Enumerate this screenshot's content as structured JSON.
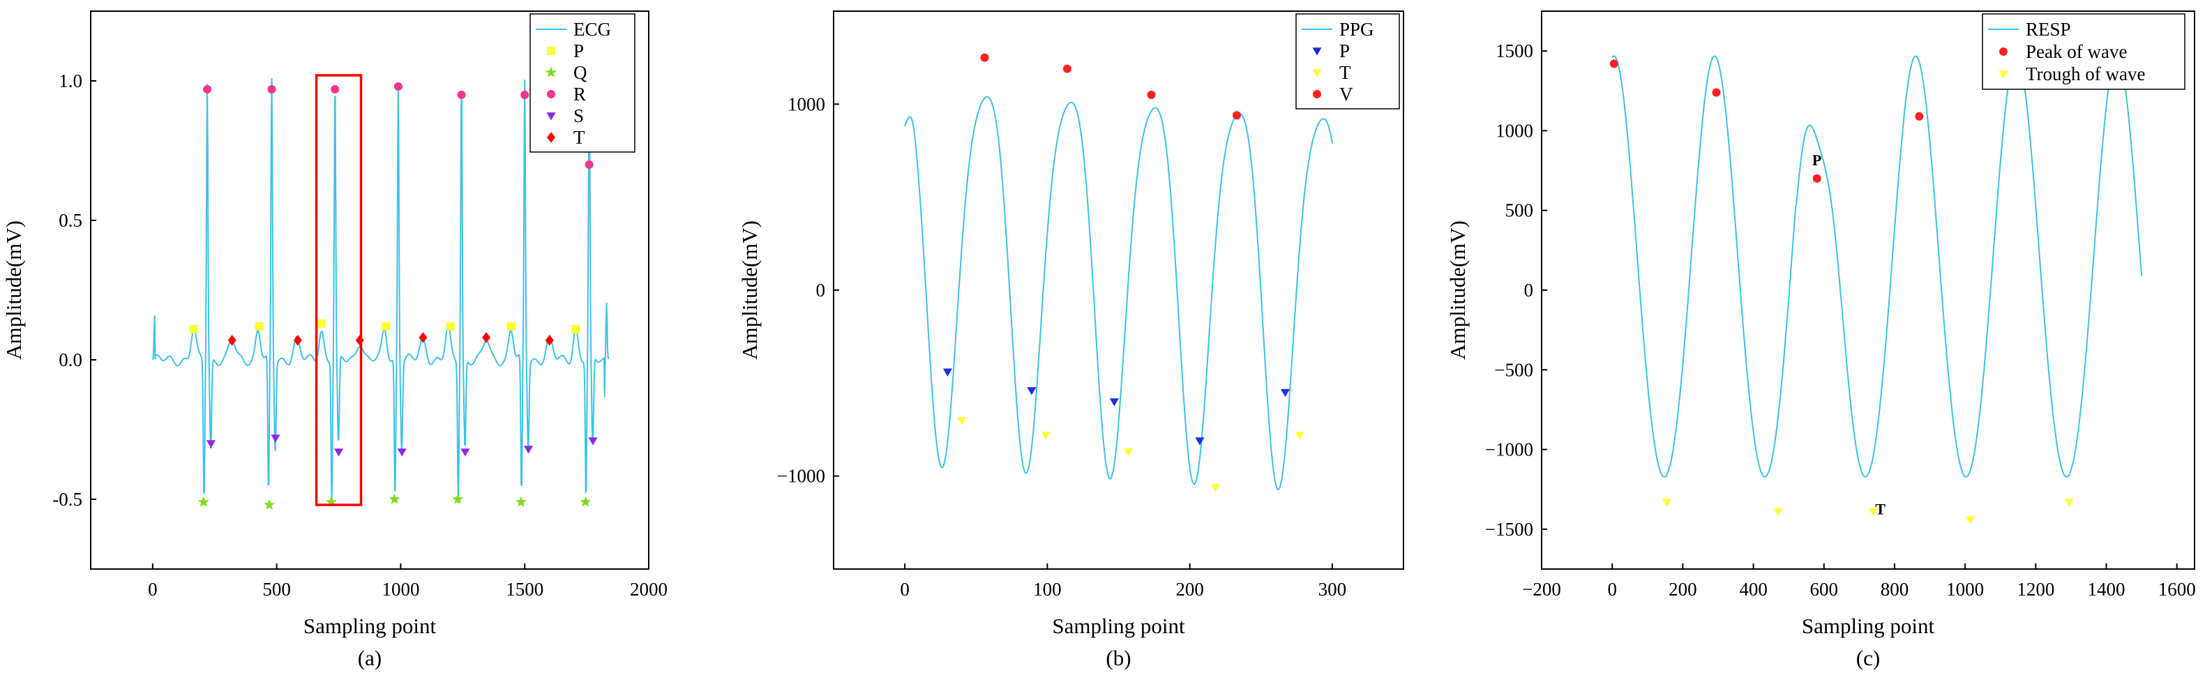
{
  "chart_data": [
    {
      "id": "a",
      "type": "line",
      "caption": "(a)",
      "xlabel": "Sampling point",
      "ylabel": "Amplitude(mV)",
      "xlim": [
        -250,
        2000
      ],
      "ylim": [
        -0.75,
        1.25
      ],
      "xticks": [
        0,
        500,
        1000,
        1500,
        2000
      ],
      "yticks": [
        -0.5,
        0.0,
        0.5,
        1.0
      ],
      "yticklabels": [
        "-0.5",
        "0.0",
        "0.5",
        "1.0"
      ],
      "line_color": "#3cc2e6",
      "series": [
        {
          "name": "ECG",
          "kind": "line",
          "color": "#3cc2e6"
        },
        {
          "name": "P",
          "kind": "marker",
          "marker": "square",
          "color": "#ffff33",
          "points": [
            [
              165,
              0.11
            ],
            [
              430,
              0.12
            ],
            [
              680,
              0.13
            ],
            [
              940,
              0.12
            ],
            [
              1200,
              0.12
            ],
            [
              1445,
              0.12
            ],
            [
              1705,
              0.11
            ]
          ]
        },
        {
          "name": "Q",
          "kind": "marker",
          "marker": "star",
          "color": "#7fdc1e",
          "points": [
            [
              205,
              -0.51
            ],
            [
              470,
              -0.52
            ],
            [
              720,
              -0.51
            ],
            [
              975,
              -0.5
            ],
            [
              1230,
              -0.5
            ],
            [
              1485,
              -0.51
            ],
            [
              1745,
              -0.51
            ]
          ]
        },
        {
          "name": "R",
          "kind": "marker",
          "marker": "circle",
          "color": "#f0368c",
          "points": [
            [
              220,
              0.97
            ],
            [
              480,
              0.97
            ],
            [
              735,
              0.97
            ],
            [
              990,
              0.98
            ],
            [
              1245,
              0.95
            ],
            [
              1500,
              0.95
            ],
            [
              1760,
              0.7
            ]
          ]
        },
        {
          "name": "S",
          "kind": "marker",
          "marker": "triangle-down",
          "color": "#8a2be2",
          "points": [
            [
              235,
              -0.3
            ],
            [
              495,
              -0.28
            ],
            [
              750,
              -0.33
            ],
            [
              1005,
              -0.33
            ],
            [
              1260,
              -0.33
            ],
            [
              1515,
              -0.32
            ],
            [
              1775,
              -0.29
            ]
          ]
        },
        {
          "name": "T",
          "kind": "marker",
          "marker": "diamond",
          "color": "#ff0000",
          "points": [
            [
              320,
              0.07
            ],
            [
              585,
              0.07
            ],
            [
              835,
              0.07
            ],
            [
              1090,
              0.08
            ],
            [
              1345,
              0.08
            ],
            [
              1600,
              0.07
            ]
          ]
        }
      ],
      "highlight_box": {
        "x": [
          660,
          840
        ],
        "y": [
          -0.52,
          1.02
        ],
        "color": "#ff0000"
      },
      "legend_position": "top-right"
    },
    {
      "id": "b",
      "type": "line",
      "caption": "(b)",
      "xlabel": "Sampling point",
      "ylabel": "Amplitude(mV)",
      "xlim": [
        -50,
        350
      ],
      "ylim": [
        -1500,
        1500
      ],
      "xticks": [
        0,
        100,
        200,
        300
      ],
      "yticks": [
        -1000,
        0,
        1000
      ],
      "yticklabels": [
        "−1000",
        "0",
        "1000"
      ],
      "line_color": "#3cc2e6",
      "series": [
        {
          "name": "PPG",
          "kind": "line",
          "color": "#3cc2e6"
        },
        {
          "name": "P",
          "kind": "marker",
          "marker": "triangle-down",
          "color": "#1f2fe0",
          "points": [
            [
              30,
              -440
            ],
            [
              89,
              -540
            ],
            [
              147,
              -600
            ],
            [
              207,
              -810
            ],
            [
              267,
              -550
            ]
          ]
        },
        {
          "name": "T",
          "kind": "marker",
          "marker": "triangle-down",
          "color": "#ffff33",
          "points": [
            [
              40,
              -700
            ],
            [
              99,
              -780
            ],
            [
              157,
              -870
            ],
            [
              218,
              -1060
            ],
            [
              277,
              -780
            ]
          ]
        },
        {
          "name": "V",
          "kind": "marker",
          "marker": "circle",
          "color": "#ff2020",
          "points": [
            [
              56,
              1250
            ],
            [
              114,
              1190
            ],
            [
              173,
              1050
            ],
            [
              233,
              940
            ]
          ]
        }
      ],
      "legend_position": "top-right"
    },
    {
      "id": "c",
      "type": "line",
      "caption": "(c)",
      "xlabel": "Sampling point",
      "ylabel": "Amplitude(mV)",
      "xlim": [
        -200,
        1650
      ],
      "ylim": [
        -1750,
        1750
      ],
      "xticks": [
        -200,
        0,
        200,
        400,
        600,
        800,
        1000,
        1200,
        1400,
        1600
      ],
      "yticks": [
        -1500,
        -1000,
        -500,
        0,
        500,
        1000,
        1500
      ],
      "yticklabels": [
        "−1500",
        "−1000",
        "−500",
        "0",
        "500",
        "1000",
        "1500"
      ],
      "line_color": "#3cc2e6",
      "series": [
        {
          "name": "RESP",
          "kind": "line",
          "color": "#3cc2e6"
        },
        {
          "name": "Peak of wave",
          "kind": "marker",
          "marker": "circle",
          "color": "#ff2020",
          "points": [
            [
              5,
              1420
            ],
            [
              295,
              1240
            ],
            [
              580,
              700
            ],
            [
              870,
              1090
            ]
          ]
        },
        {
          "name": "Trough of wave",
          "kind": "marker",
          "marker": "triangle-down",
          "color": "#ffff33",
          "points": [
            [
              155,
              -1330
            ],
            [
              470,
              -1390
            ],
            [
              740,
              -1390
            ],
            [
              1015,
              -1440
            ],
            [
              1295,
              -1330
            ]
          ]
        }
      ],
      "annotations": [
        {
          "text": "P",
          "x": 580,
          "y": 730
        },
        {
          "text": "T",
          "x": 760,
          "y": -1460
        }
      ],
      "legend_position": "top-right"
    }
  ]
}
